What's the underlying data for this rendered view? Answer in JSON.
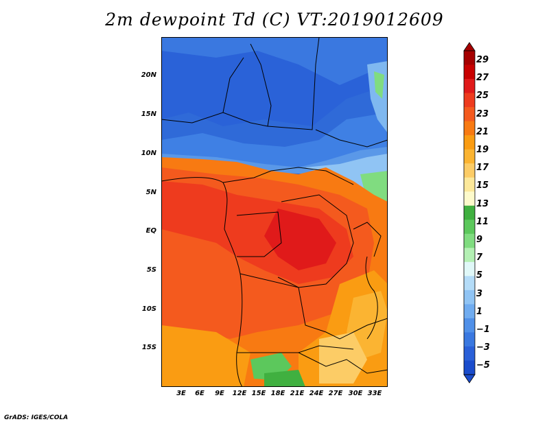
{
  "title": "2m dewpoint Td (C) VT:2019012609",
  "credit": "GrADS: IGES/COLA",
  "lat_labels": [
    "20N",
    "15N",
    "10N",
    "5N",
    "EQ",
    "5S",
    "10S",
    "15S"
  ],
  "lon_labels": [
    "3E",
    "6E",
    "9E",
    "12E",
    "15E",
    "18E",
    "21E",
    "24E",
    "27E",
    "30E",
    "33E"
  ],
  "colorbar": {
    "labels": [
      "29",
      "27",
      "25",
      "23",
      "21",
      "19",
      "17",
      "15",
      "13",
      "11",
      "9",
      "7",
      "5",
      "3",
      "1",
      "−1",
      "−3",
      "−5"
    ],
    "colors_top_to_bottom": [
      "#a50000",
      "#c80000",
      "#e01a1a",
      "#ee3b1e",
      "#f45a1e",
      "#f87a12",
      "#fa9c12",
      "#fbb432",
      "#fccc66",
      "#fce89a",
      "#fdfacb",
      "#40b040",
      "#5cc85c",
      "#80dc80",
      "#b4f0b4",
      "#e0f8f8",
      "#b4dcf8",
      "#90c4f4",
      "#70acf0",
      "#5090e8",
      "#3a78e0",
      "#2a60d8",
      "#1a4ccc"
    ]
  }
}
